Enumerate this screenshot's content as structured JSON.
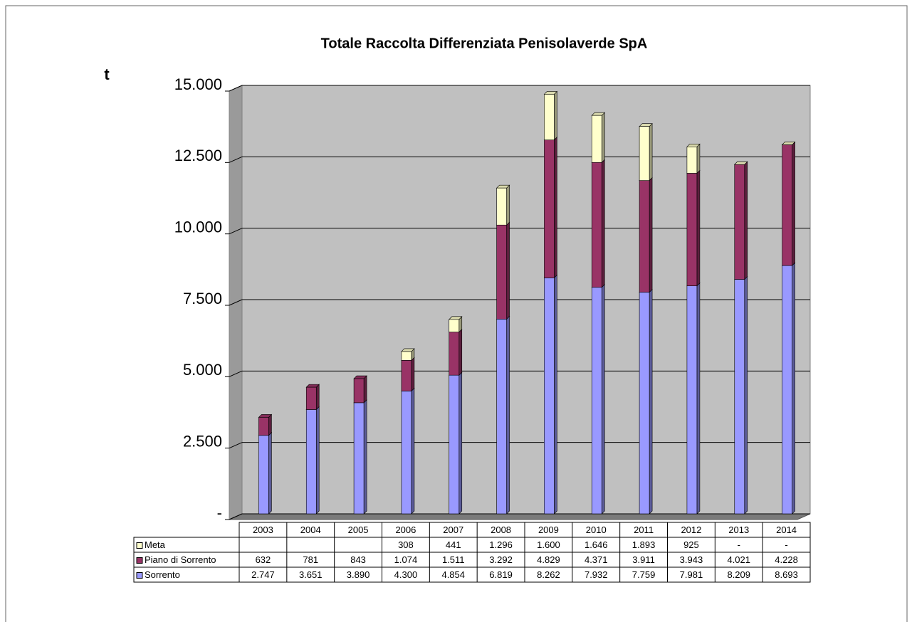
{
  "chart_data": {
    "type": "stacked_bar",
    "title": "Totale Raccolta Differenziata Penisolaverde SpA",
    "y_label": "t",
    "categories": [
      "2003",
      "2004",
      "2005",
      "2006",
      "2007",
      "2008",
      "2009",
      "2010",
      "2011",
      "2012",
      "2013",
      "2014"
    ],
    "series": [
      {
        "name": "Sorrento",
        "color": "#9999ff",
        "values": [
          2747,
          3651,
          3890,
          4300,
          4854,
          6819,
          8262,
          7932,
          7759,
          7981,
          8209,
          8693
        ],
        "value_labels": [
          "2.747",
          "3.651",
          "3.890",
          "4.300",
          "4.854",
          "6.819",
          "8.262",
          "7.932",
          "7.759",
          "7.981",
          "8.209",
          "8.693"
        ]
      },
      {
        "name": "Piano di Sorrento",
        "color": "#993366",
        "values": [
          632,
          781,
          843,
          1074,
          1511,
          3292,
          4829,
          4371,
          3911,
          3943,
          4021,
          4228
        ],
        "value_labels": [
          "632",
          "781",
          "843",
          "1.074",
          "1.511",
          "3.292",
          "4.829",
          "4.371",
          "3.911",
          "3.943",
          "4.021",
          "4.228"
        ]
      },
      {
        "name": "Meta",
        "color": "#ffffcc",
        "values": [
          null,
          null,
          null,
          308,
          441,
          1296,
          1600,
          1646,
          1893,
          925,
          0,
          0
        ],
        "value_labels": [
          null,
          null,
          null,
          "308",
          "441",
          "1.296",
          "1.600",
          "1.646",
          "1.893",
          "925",
          "-",
          "-"
        ]
      }
    ],
    "ylim": [
      0,
      15000
    ],
    "yticks": [
      {
        "value": 0,
        "label": "-"
      },
      {
        "value": 2500,
        "label": "2.500"
      },
      {
        "value": 5000,
        "label": "5.000"
      },
      {
        "value": 7500,
        "label": "7.500"
      },
      {
        "value": 10000,
        "label": "10.000"
      },
      {
        "value": 12500,
        "label": "12.500"
      },
      {
        "value": 15000,
        "label": "15.000"
      }
    ],
    "grid": true
  }
}
